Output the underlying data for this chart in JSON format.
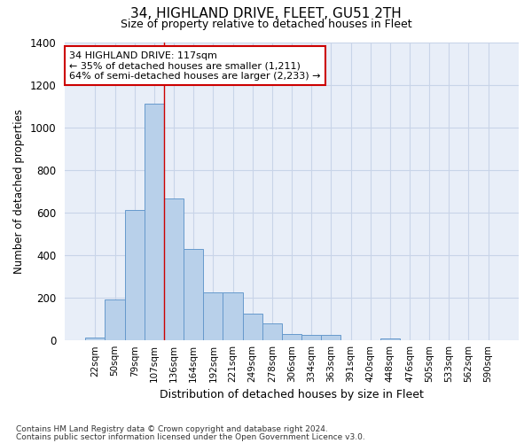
{
  "title": "34, HIGHLAND DRIVE, FLEET, GU51 2TH",
  "subtitle": "Size of property relative to detached houses in Fleet",
  "xlabel": "Distribution of detached houses by size in Fleet",
  "ylabel": "Number of detached properties",
  "footer_line1": "Contains HM Land Registry data © Crown copyright and database right 2024.",
  "footer_line2": "Contains public sector information licensed under the Open Government Licence v3.0.",
  "bar_labels": [
    "22sqm",
    "50sqm",
    "79sqm",
    "107sqm",
    "136sqm",
    "164sqm",
    "192sqm",
    "221sqm",
    "249sqm",
    "278sqm",
    "306sqm",
    "334sqm",
    "363sqm",
    "391sqm",
    "420sqm",
    "448sqm",
    "476sqm",
    "505sqm",
    "533sqm",
    "562sqm",
    "590sqm"
  ],
  "bar_values": [
    15,
    190,
    610,
    1110,
    665,
    430,
    225,
    225,
    125,
    80,
    30,
    25,
    25,
    0,
    0,
    10,
    0,
    0,
    0,
    0,
    0
  ],
  "bar_color": "#b8d0ea",
  "bar_edge_color": "#6699cc",
  "ylim": [
    0,
    1400
  ],
  "yticks": [
    0,
    200,
    400,
    600,
    800,
    1000,
    1200,
    1400
  ],
  "property_line_x": 3.5,
  "annotation_text": "34 HIGHLAND DRIVE: 117sqm\n← 35% of detached houses are smaller (1,211)\n64% of semi-detached houses are larger (2,233) →",
  "annotation_box_color": "#ffffff",
  "annotation_box_edge_color": "#cc0000",
  "vline_color": "#cc0000",
  "grid_color": "#c8d4e8",
  "background_color": "#e8eef8",
  "title_fontsize": 11,
  "subtitle_fontsize": 9
}
